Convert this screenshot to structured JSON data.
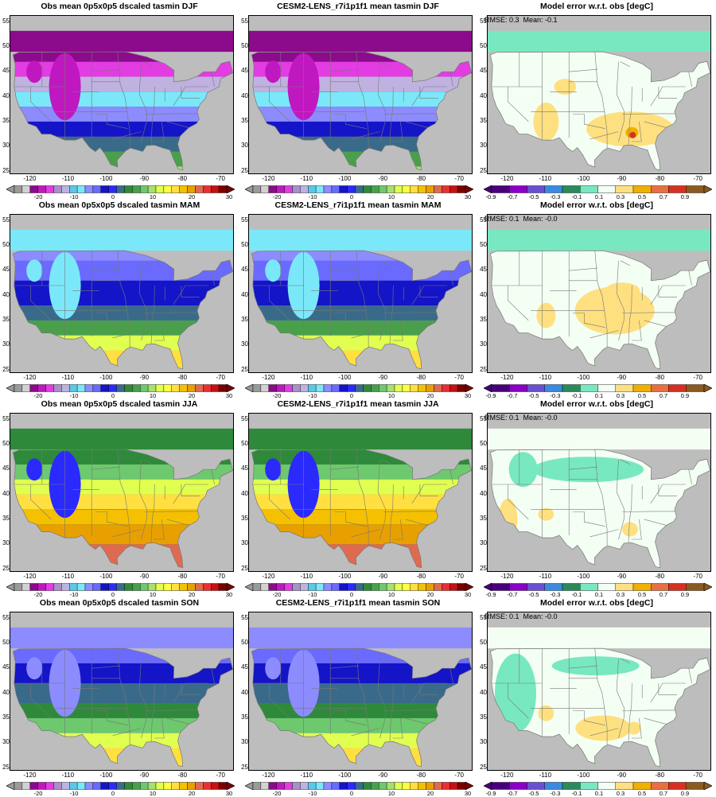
{
  "rows": [
    {
      "season": "DJF",
      "obs_title": "Obs mean 0p5x0p5 dscaled tasmin DJF",
      "model_title": "CESM2-LENS_r7i1p1f1 mean tasmin DJF",
      "error_title": "Model error w.r.t. obs [degC]",
      "rmse_label": "RMSE: 0.3",
      "mean_label": "Mean: -0.1"
    },
    {
      "season": "MAM",
      "obs_title": "Obs mean 0p5x0p5 dscaled tasmin MAM",
      "model_title": "CESM2-LENS_r7i1p1f1 mean tasmin MAM",
      "error_title": "Model error w.r.t. obs [degC]",
      "rmse_label": "RMSE: 0.1",
      "mean_label": "Mean: -0.0"
    },
    {
      "season": "JJA",
      "obs_title": "Obs mean 0p5x0p5 dscaled tasmin JJA",
      "model_title": "CESM2-LENS_r7i1p1f1 mean tasmin JJA",
      "error_title": "Model error w.r.t. obs [degC]",
      "rmse_label": "RMSE: 0.1",
      "mean_label": "Mean: -0.0"
    },
    {
      "season": "SON",
      "obs_title": "Obs mean 0p5x0p5 dscaled tasmin SON",
      "model_title": "CESM2-LENS_r7i1p1f1 mean tasmin SON",
      "error_title": "Model error w.r.t. obs [degC]",
      "rmse_label": "RMSE: 0.1",
      "mean_label": "Mean: -0.0"
    }
  ],
  "map_axes": {
    "lon_ticks": [
      "-120",
      "-110",
      "-100",
      "-90",
      "-80",
      "-70"
    ],
    "lat_ticks": [
      "55",
      "50",
      "45",
      "40",
      "35",
      "30",
      "25"
    ]
  },
  "temperature_colorbar": {
    "labels": [
      "-20",
      "-10",
      "0",
      "10",
      "20",
      "30"
    ],
    "colors": [
      "#9a9a9a",
      "#d2d2d2",
      "#8c0a8c",
      "#c018c0",
      "#e23ce2",
      "#a890c8",
      "#bfb2e0",
      "#5ac8e8",
      "#7ae8f8",
      "#8c8cff",
      "#6a6aff",
      "#1414c8",
      "#2a2aff",
      "#3a6a8a",
      "#2e8a3a",
      "#4aa04a",
      "#6ec86e",
      "#a8e070",
      "#e0ff50",
      "#ffff40",
      "#ffe040",
      "#f5c000",
      "#e8a000",
      "#e06a50",
      "#e83030",
      "#c81010",
      "#7a0000"
    ]
  },
  "error_colorbar": {
    "labels": [
      "-0.9",
      "-0.7",
      "-0.5",
      "-0.3",
      "-0.1",
      "0.1",
      "0.3",
      "0.5",
      "0.7",
      "0.9"
    ],
    "colors": [
      "#48007a",
      "#8a00c8",
      "#6a50d0",
      "#3a8ae0",
      "#2a8a5a",
      "#78e8c0",
      "#f4fff4",
      "#ffe080",
      "#f0b000",
      "#e87040",
      "#d83020",
      "#8a5a20"
    ]
  },
  "colors": {
    "land_mask": "#bdbdbd",
    "boundaries": "#777777"
  }
}
